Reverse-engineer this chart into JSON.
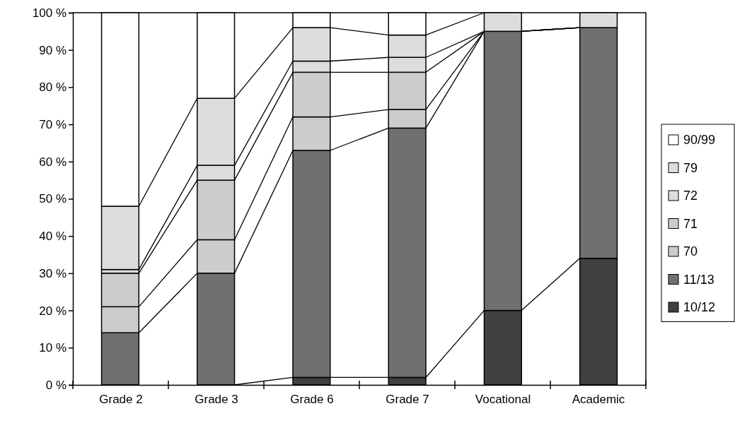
{
  "chart_data": {
    "type": "bar",
    "stacked": true,
    "categories": [
      "Grade 2",
      "Grade 3",
      "Grade 6",
      "Grade 7",
      "Vocational",
      "Academic"
    ],
    "series": [
      {
        "name": "10/12",
        "color": "#404040",
        "values": [
          0,
          0,
          2,
          2,
          20,
          34
        ]
      },
      {
        "name": "11/13",
        "color": "#707070",
        "values": [
          14,
          30,
          61,
          67,
          75,
          62
        ]
      },
      {
        "name": "70",
        "color": "#cccccc",
        "values": [
          7,
          9,
          9,
          5,
          0,
          0
        ]
      },
      {
        "name": "71",
        "color": "#cccccc",
        "values": [
          9,
          16,
          12,
          10,
          0,
          0
        ]
      },
      {
        "name": "72",
        "color": "#dddddd",
        "values": [
          1,
          4,
          3,
          4,
          0,
          0
        ]
      },
      {
        "name": "79",
        "color": "#dddddd",
        "values": [
          17,
          18,
          9,
          6,
          5,
          4
        ]
      },
      {
        "name": "90/99",
        "color": "#ffffff",
        "values": [
          52,
          23,
          4,
          6,
          0,
          0
        ]
      }
    ],
    "ylim": [
      0,
      100
    ],
    "yticks": [
      {
        "value": 0,
        "label": "0 %"
      },
      {
        "value": 10,
        "label": "10 %"
      },
      {
        "value": 20,
        "label": "20 %"
      },
      {
        "value": 30,
        "label": "30 %"
      },
      {
        "value": 40,
        "label": "40 %"
      },
      {
        "value": 50,
        "label": "50 %"
      },
      {
        "value": 60,
        "label": "60 %"
      },
      {
        "value": 70,
        "label": "70 %"
      },
      {
        "value": 80,
        "label": "80 %"
      },
      {
        "value": 90,
        "label": "90 %"
      },
      {
        "value": 100,
        "label": "100 %"
      }
    ],
    "legend": "right",
    "grid": false
  }
}
